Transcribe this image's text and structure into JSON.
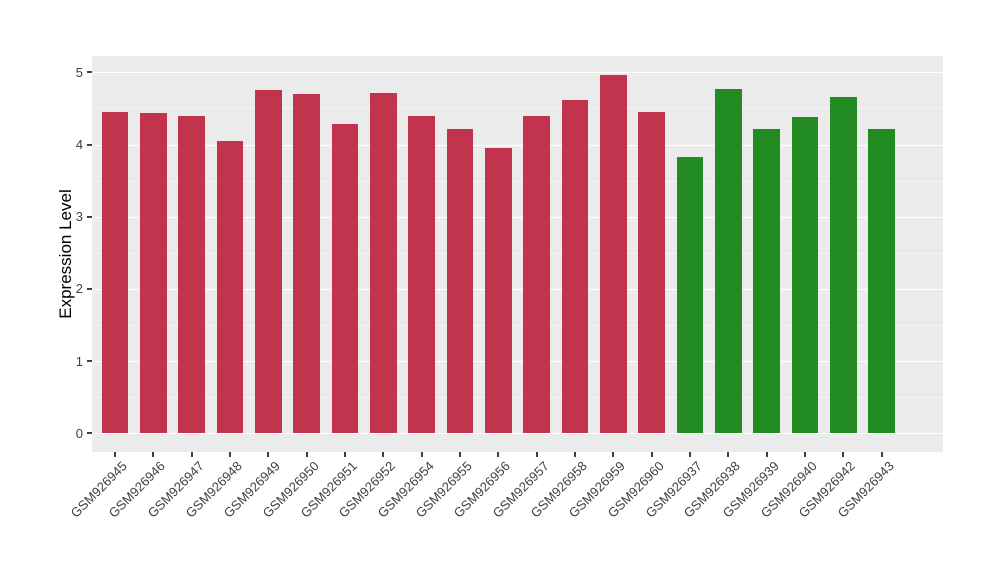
{
  "chart_data": {
    "type": "bar",
    "title": "",
    "xlabel": "",
    "ylabel": "Expression Level",
    "ylim": [
      0,
      5.22
    ],
    "yticks": [
      0,
      1,
      2,
      3,
      4,
      5
    ],
    "grid": "major and minor horizontal white gridlines on gray panel",
    "legend_position": "none",
    "categories": [
      "GSM926945",
      "GSM926946",
      "GSM926947",
      "GSM926948",
      "GSM926949",
      "GSM926950",
      "GSM926951",
      "GSM926952",
      "GSM926954",
      "GSM926955",
      "GSM926956",
      "GSM926957",
      "GSM926958",
      "GSM926959",
      "GSM926960",
      "GSM926937",
      "GSM926938",
      "GSM926939",
      "GSM926940",
      "GSM926942",
      "GSM926943"
    ],
    "values": [
      4.45,
      4.44,
      4.4,
      4.05,
      4.75,
      4.7,
      4.29,
      4.72,
      4.39,
      4.22,
      3.95,
      4.39,
      4.62,
      4.96,
      4.45,
      3.83,
      4.77,
      4.22,
      4.38,
      4.66,
      4.22
    ],
    "bar_groups": [
      "red",
      "red",
      "red",
      "red",
      "red",
      "red",
      "red",
      "red",
      "red",
      "red",
      "red",
      "red",
      "red",
      "red",
      "red",
      "green",
      "green",
      "green",
      "green",
      "green",
      "green"
    ],
    "colors": {
      "red": "#C2334D",
      "green": "#228B22"
    },
    "style": {
      "panel_bg": "#EBEBEB",
      "grid_color": "#FFFFFF",
      "axis_text_color": "#404040",
      "axis_title_color": "#000000",
      "background": "#FFFFFF"
    }
  }
}
